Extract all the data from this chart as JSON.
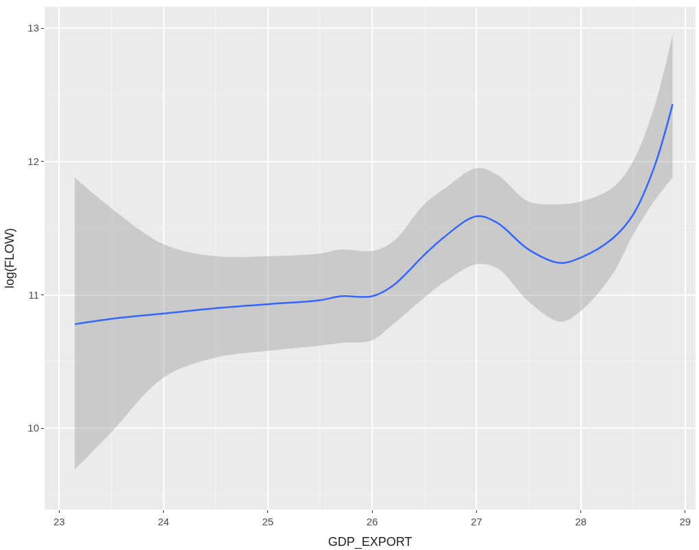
{
  "chart_data": {
    "type": "line",
    "xlabel": "GDP_EXPORT",
    "ylabel": "log(FLOW)",
    "x": [
      23.15,
      23.5,
      24,
      24.5,
      25,
      25.5,
      25.7,
      26,
      26.2,
      26.5,
      26.7,
      27,
      27.2,
      27.5,
      27.8,
      28,
      28.3,
      28.5,
      28.7,
      28.88
    ],
    "series": [
      {
        "color": "#3366ff",
        "values": [
          10.78,
          10.82,
          10.86,
          10.9,
          10.93,
          10.96,
          10.99,
          10.99,
          11.07,
          11.3,
          11.44,
          11.59,
          11.54,
          11.34,
          11.24,
          11.28,
          11.42,
          11.6,
          11.95,
          12.43
        ],
        "lower": [
          9.69,
          9.97,
          10.38,
          10.53,
          10.58,
          10.62,
          10.64,
          10.66,
          10.78,
          10.98,
          11.1,
          11.23,
          11.2,
          10.95,
          10.8,
          10.88,
          11.15,
          11.45,
          11.7,
          11.88
        ],
        "upper": [
          11.88,
          11.65,
          11.38,
          11.29,
          11.29,
          11.31,
          11.34,
          11.33,
          11.4,
          11.68,
          11.8,
          11.95,
          11.9,
          11.7,
          11.68,
          11.7,
          11.8,
          12.0,
          12.4,
          12.95
        ]
      }
    ],
    "xlim": [
      22.86,
      29.1
    ],
    "ylim": [
      9.39,
      13.16
    ],
    "xticks": [
      23,
      24,
      25,
      26,
      27,
      28,
      29
    ],
    "yticks": [
      10,
      11,
      12,
      13
    ],
    "grid": true
  }
}
